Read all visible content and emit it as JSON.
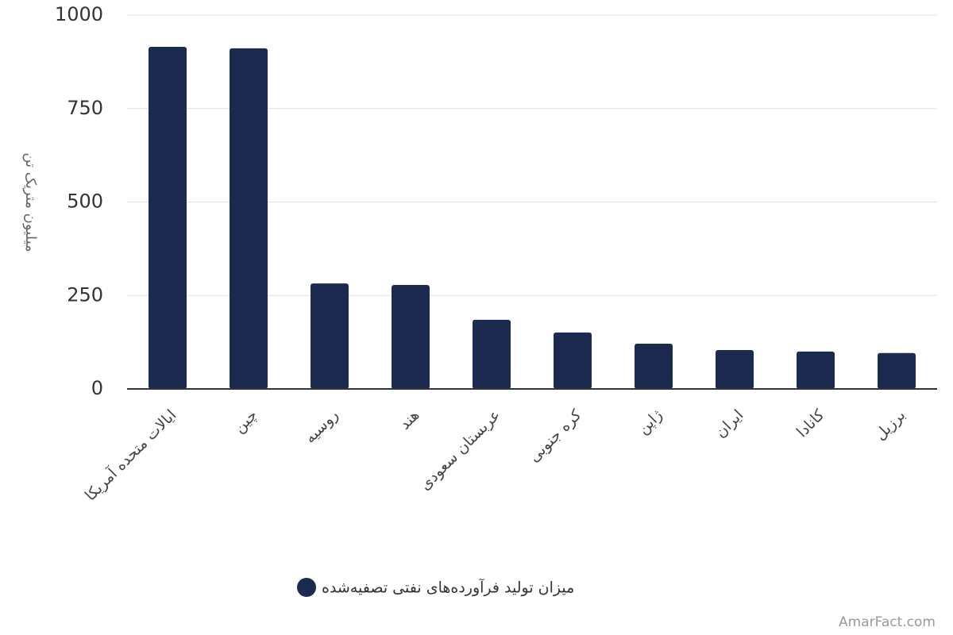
{
  "chart_data": {
    "type": "bar",
    "y_label": "میلیون متریک تن",
    "categories": [
      "ایالات متحده آمریکا",
      "چین",
      "روسیه",
      "هند",
      "عربستان سعودی",
      "کره جنوبی",
      "ژاپن",
      "ایران",
      "کانادا",
      "برزیل"
    ],
    "series": [
      {
        "name": "میزان تولید فرآورده‌های نفتی تصفیه‌شده",
        "color": "#1b2a4e",
        "values": [
          915,
          911,
          282,
          278,
          185,
          151,
          121,
          104,
          100,
          96
        ]
      }
    ],
    "ylim": [
      0,
      1000
    ],
    "yticks": [
      0,
      250,
      500,
      750,
      1000
    ],
    "grid": true,
    "legend": "bottom",
    "watermark": "AmarFact.com"
  }
}
